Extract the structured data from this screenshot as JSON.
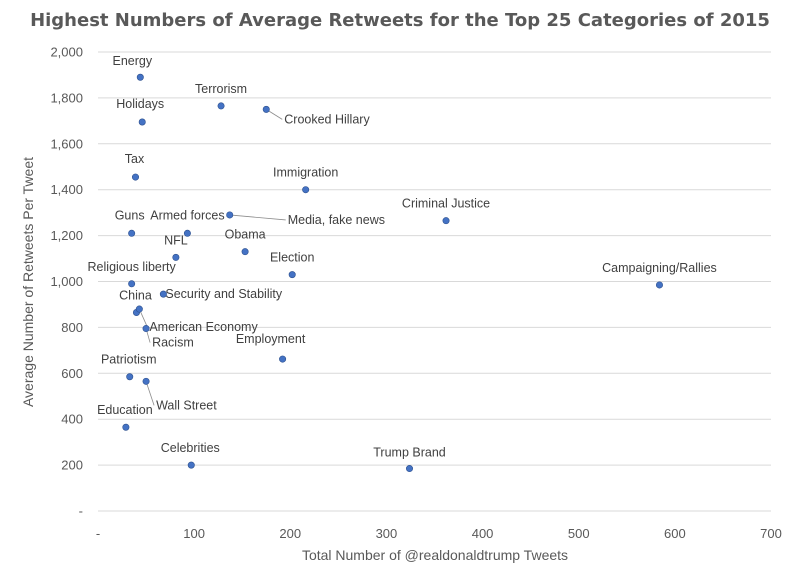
{
  "chart_data": {
    "type": "scatter",
    "title": "Highest Numbers of Average Retweets for the Top 25 Categories of 2015",
    "xlabel": "Total Number of @realdonaldtrump Tweets",
    "ylabel": "Average Number of Retweets Per Tweet",
    "xlim": [
      0,
      700
    ],
    "ylim": [
      0,
      2000
    ],
    "x_ticks": [
      "-",
      "100",
      "200",
      "300",
      "400",
      "500",
      "600",
      "700"
    ],
    "y_ticks": [
      "-",
      "200",
      "400",
      "600",
      "800",
      "1,000",
      "1,200",
      "1,400",
      "1,600",
      "1,800",
      "2,000"
    ],
    "grid": "horizontal",
    "points": [
      {
        "label": "Energy",
        "x": 44,
        "y": 1890
      },
      {
        "label": "Terrorism",
        "x": 128,
        "y": 1765
      },
      {
        "label": "Crooked Hillary",
        "x": 175,
        "y": 1750
      },
      {
        "label": "Holidays",
        "x": 46,
        "y": 1695
      },
      {
        "label": "Tax",
        "x": 39,
        "y": 1455
      },
      {
        "label": "Immigration",
        "x": 216,
        "y": 1400
      },
      {
        "label": "Criminal Justice",
        "x": 362,
        "y": 1265
      },
      {
        "label": "Media, fake news",
        "x": 137,
        "y": 1290
      },
      {
        "label": "Guns",
        "x": 35,
        "y": 1210
      },
      {
        "label": "Armed forces",
        "x": 93,
        "y": 1210
      },
      {
        "label": "Obama",
        "x": 153,
        "y": 1130
      },
      {
        "label": "NFL",
        "x": 81,
        "y": 1105
      },
      {
        "label": "Election",
        "x": 202,
        "y": 1030
      },
      {
        "label": "Campaigning/Rallies",
        "x": 584,
        "y": 985
      },
      {
        "label": "Religious liberty",
        "x": 35,
        "y": 990
      },
      {
        "label": "Security and Stability",
        "x": 68,
        "y": 945
      },
      {
        "label": "China",
        "x": 40,
        "y": 865
      },
      {
        "label": "American Economy",
        "x": 43,
        "y": 880
      },
      {
        "label": "Racism",
        "x": 50,
        "y": 795
      },
      {
        "label": "Employment",
        "x": 192,
        "y": 662
      },
      {
        "label": "Patriotism",
        "x": 33,
        "y": 585
      },
      {
        "label": "Wall Street",
        "x": 50,
        "y": 565
      },
      {
        "label": "Education",
        "x": 29,
        "y": 365
      },
      {
        "label": "Celebrities",
        "x": 97,
        "y": 200
      },
      {
        "label": "Trump Brand",
        "x": 324,
        "y": 185
      }
    ]
  }
}
